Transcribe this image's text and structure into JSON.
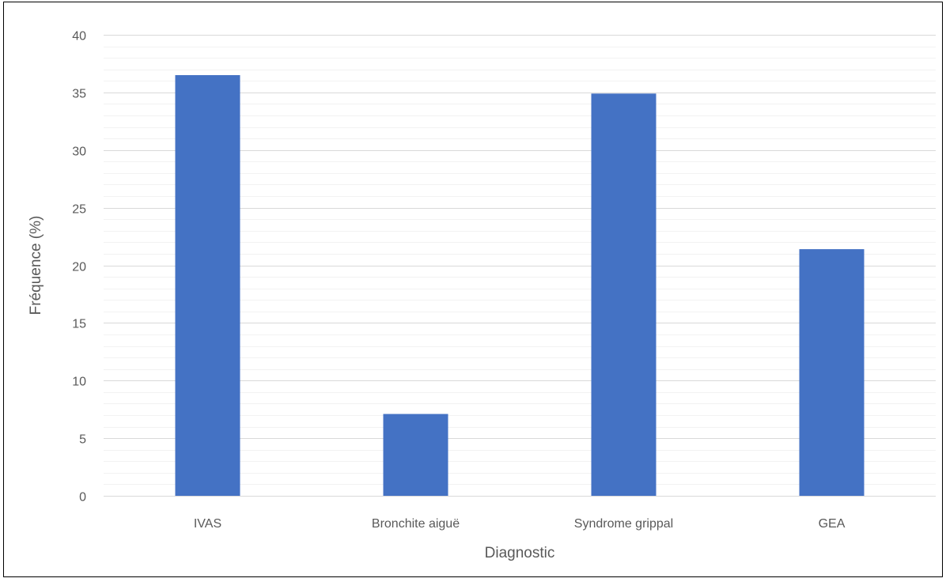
{
  "chart_data": {
    "type": "bar",
    "title": "",
    "xlabel": "Diagnostic",
    "ylabel": "Fréquence (%)",
    "categories": [
      "IVAS",
      "Bronchite aiguë",
      "Syndrome grippal",
      "GEA"
    ],
    "values": [
      36.5,
      7.1,
      34.9,
      21.4
    ],
    "ylim": [
      0,
      40
    ],
    "yticks": [
      0,
      5,
      10,
      15,
      20,
      25,
      30,
      35,
      40
    ],
    "minor_gridlines_step": 1,
    "grid": true,
    "legend": "none",
    "bar_color": "#4472C4",
    "major_gridline_color": "#D9D9D9",
    "minor_gridline_color": "#F2F2F2",
    "text_color": "#595959"
  }
}
